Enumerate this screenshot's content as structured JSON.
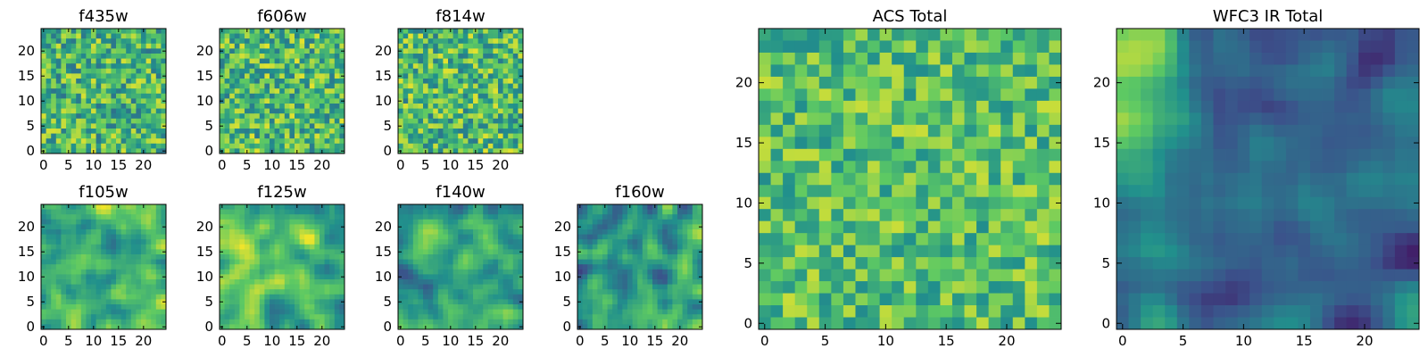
{
  "figure": {
    "colormap": "viridis",
    "colormap_stops": [
      "#440154",
      "#3b528b",
      "#21908c",
      "#5dc963",
      "#fde725"
    ],
    "pixel_grid": 25
  },
  "chart_data": [
    {
      "type": "heatmap",
      "title": "f435w",
      "xlim": [
        0,
        25
      ],
      "ylim": [
        0,
        25
      ],
      "xticks": [
        0,
        5,
        10,
        15,
        20
      ],
      "yticks": [
        0,
        5,
        10,
        15,
        20
      ],
      "pattern": "noise",
      "seed": 11,
      "mean": 0.66,
      "spread": 0.28
    },
    {
      "type": "heatmap",
      "title": "f606w",
      "xlim": [
        0,
        25
      ],
      "ylim": [
        0,
        25
      ],
      "xticks": [
        0,
        5,
        10,
        15,
        20
      ],
      "yticks": [
        0,
        5,
        10,
        15,
        20
      ],
      "pattern": "noise",
      "seed": 23,
      "mean": 0.68,
      "spread": 0.28
    },
    {
      "type": "heatmap",
      "title": "f814w",
      "xlim": [
        0,
        25
      ],
      "ylim": [
        0,
        25
      ],
      "xticks": [
        0,
        5,
        10,
        15,
        20
      ],
      "yticks": [
        0,
        5,
        10,
        15,
        20
      ],
      "pattern": "noise",
      "seed": 37,
      "mean": 0.68,
      "spread": 0.28
    },
    {
      "type": "heatmap",
      "title": "f105w",
      "xlim": [
        0,
        25
      ],
      "ylim": [
        0,
        25
      ],
      "xticks": [
        0,
        5,
        10,
        15,
        20
      ],
      "yticks": [
        0,
        5,
        10,
        15,
        20
      ],
      "pattern": "smooth",
      "seed": 41,
      "mean": 0.68,
      "spread": 0.3
    },
    {
      "type": "heatmap",
      "title": "f125w",
      "xlim": [
        0,
        25
      ],
      "ylim": [
        0,
        25
      ],
      "xticks": [
        0,
        5,
        10,
        15,
        20
      ],
      "yticks": [
        0,
        5,
        10,
        15,
        20
      ],
      "pattern": "smooth",
      "seed": 53,
      "mean": 0.68,
      "spread": 0.32
    },
    {
      "type": "heatmap",
      "title": "f140w",
      "xlim": [
        0,
        25
      ],
      "ylim": [
        0,
        25
      ],
      "xticks": [
        0,
        5,
        10,
        15,
        20
      ],
      "yticks": [
        0,
        5,
        10,
        15,
        20
      ],
      "pattern": "smooth",
      "seed": 67,
      "mean": 0.56,
      "spread": 0.3
    },
    {
      "type": "heatmap",
      "title": "f160w",
      "xlim": [
        0,
        25
      ],
      "ylim": [
        0,
        25
      ],
      "xticks": [
        0,
        5,
        10,
        15,
        20
      ],
      "yticks": [
        0,
        5,
        10,
        15,
        20
      ],
      "pattern": "smooth",
      "seed": 79,
      "mean": 0.54,
      "spread": 0.34
    },
    {
      "type": "heatmap",
      "title": "ACS Total",
      "xlim": [
        0,
        25
      ],
      "ylim": [
        0,
        25
      ],
      "xticks": [
        0,
        5,
        10,
        15,
        20
      ],
      "yticks": [
        0,
        5,
        10,
        15,
        20
      ],
      "pattern": "noise",
      "seed": 97,
      "mean": 0.7,
      "spread": 0.22
    },
    {
      "type": "heatmap",
      "title": "WFC3 IR Total",
      "xlim": [
        0,
        25
      ],
      "ylim": [
        0,
        25
      ],
      "xticks": [
        0,
        5,
        10,
        15,
        20
      ],
      "yticks": [
        0,
        5,
        10,
        15,
        20
      ],
      "pattern": "gradient",
      "seed": 113,
      "mean": 0.42,
      "spread": 0.3
    }
  ]
}
